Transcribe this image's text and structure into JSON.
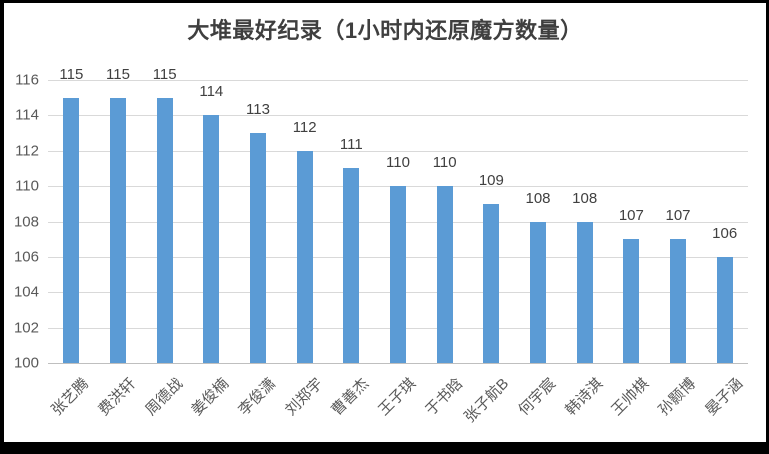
{
  "window": {
    "background_color": "#ffffff",
    "border_color": "#000000"
  },
  "chart_data": {
    "type": "bar",
    "title": "大堆最好纪录（1小时内还原魔方数量）",
    "xlabel": "",
    "ylabel": "",
    "categories": [
      "张艺腾",
      "费洪轩",
      "周德战",
      "姜俊楠",
      "李俊潇",
      "刘郑宇",
      "曹善杰",
      "王子琪",
      "于书晗",
      "张子航B",
      "何宇宸",
      "韩诗淇",
      "王帅棋",
      "孙颢博",
      "晏子涵"
    ],
    "values": [
      115,
      115,
      115,
      114,
      113,
      112,
      111,
      110,
      110,
      109,
      108,
      108,
      107,
      107,
      106
    ],
    "ylim": [
      100,
      116
    ],
    "yticks": [
      100,
      102,
      104,
      106,
      108,
      110,
      112,
      114,
      116
    ],
    "grid": true,
    "legend_position": "none",
    "data_labels": "outside-end",
    "x_label_rotation_deg": 45,
    "bar_color": "#5b9bd5",
    "gridline_color": "#d9d9d9",
    "axis_line_color": "#bfbfbf",
    "title_color": "#3f3f3f",
    "value_label_color": "#404040",
    "tick_label_color": "#595959"
  }
}
